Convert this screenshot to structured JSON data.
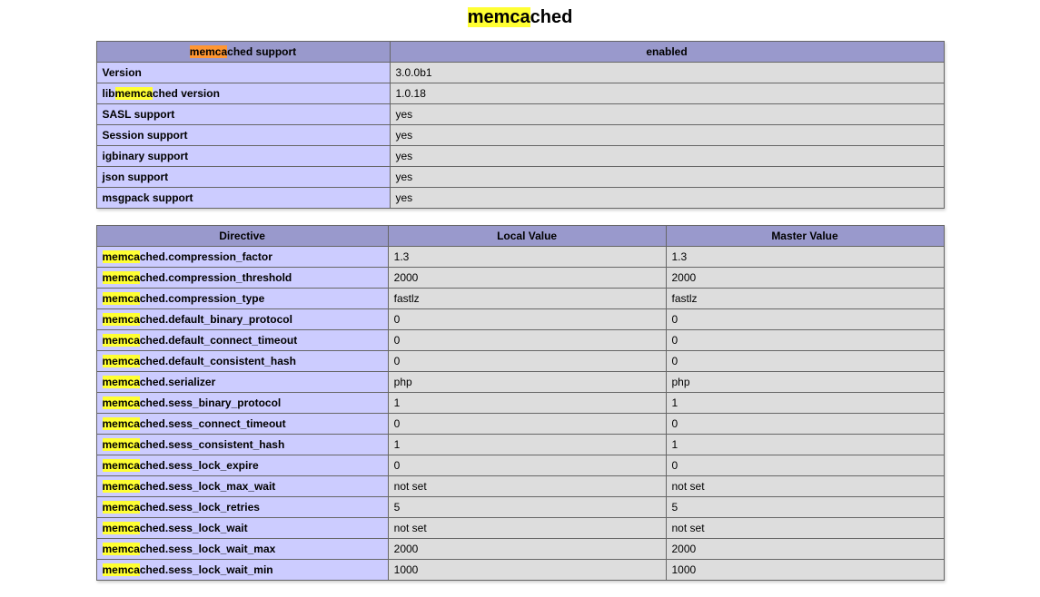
{
  "highlight_prefix": "memca",
  "highlight_suffix": "ched",
  "colors": {
    "header_bg": "#9999cc",
    "key_bg": "#ccccff",
    "val_bg": "#dddddd",
    "border": "#666666",
    "highlight_bg": "#ffff33",
    "highlight_selected_bg": "#ff9632"
  },
  "section_title_prefix": "memca",
  "section_title_suffix": "ched",
  "support_table": {
    "header": {
      "left_prefix": "memca",
      "left_suffix": "ched support",
      "right": "enabled",
      "left_selected": true
    },
    "rows": [
      {
        "key_plain": "Version",
        "value": "3.0.0b1"
      },
      {
        "key_prefix": "lib",
        "key_hl": "memca",
        "key_suffix": "ched version",
        "value": "1.0.18"
      },
      {
        "key_plain": "SASL support",
        "value": "yes"
      },
      {
        "key_plain": "Session support",
        "value": "yes"
      },
      {
        "key_plain": "igbinary support",
        "value": "yes"
      },
      {
        "key_plain": "json support",
        "value": "yes"
      },
      {
        "key_plain": "msgpack support",
        "value": "yes"
      }
    ]
  },
  "directives_table": {
    "headers": [
      "Directive",
      "Local Value",
      "Master Value"
    ],
    "row_hl": "memca",
    "rows": [
      {
        "suffix": "ched.compression_factor",
        "local": "1.3",
        "master": "1.3"
      },
      {
        "suffix": "ched.compression_threshold",
        "local": "2000",
        "master": "2000"
      },
      {
        "suffix": "ched.compression_type",
        "local": "fastlz",
        "master": "fastlz"
      },
      {
        "suffix": "ched.default_binary_protocol",
        "local": "0",
        "master": "0"
      },
      {
        "suffix": "ched.default_connect_timeout",
        "local": "0",
        "master": "0"
      },
      {
        "suffix": "ched.default_consistent_hash",
        "local": "0",
        "master": "0"
      },
      {
        "suffix": "ched.serializer",
        "local": "php",
        "master": "php"
      },
      {
        "suffix": "ched.sess_binary_protocol",
        "local": "1",
        "master": "1"
      },
      {
        "suffix": "ched.sess_connect_timeout",
        "local": "0",
        "master": "0"
      },
      {
        "suffix": "ched.sess_consistent_hash",
        "local": "1",
        "master": "1"
      },
      {
        "suffix": "ched.sess_lock_expire",
        "local": "0",
        "master": "0"
      },
      {
        "suffix": "ched.sess_lock_max_wait",
        "local": "not set",
        "master": "not set"
      },
      {
        "suffix": "ched.sess_lock_retries",
        "local": "5",
        "master": "5"
      },
      {
        "suffix": "ched.sess_lock_wait",
        "local": "not set",
        "master": "not set"
      },
      {
        "suffix": "ched.sess_lock_wait_max",
        "local": "2000",
        "master": "2000"
      },
      {
        "suffix": "ched.sess_lock_wait_min",
        "local": "1000",
        "master": "1000"
      }
    ]
  }
}
